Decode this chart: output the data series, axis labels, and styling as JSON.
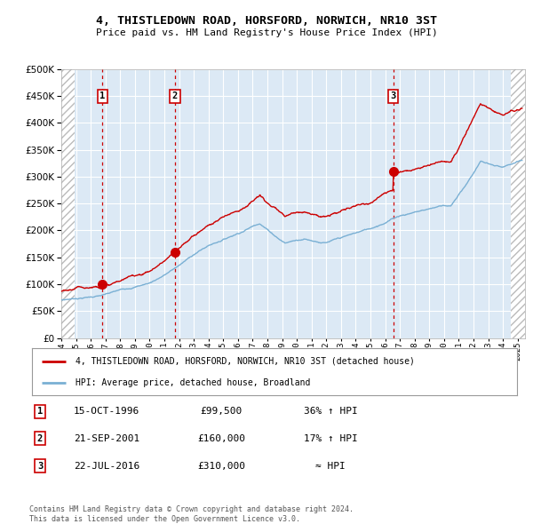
{
  "title": "4, THISTLEDOWN ROAD, HORSFORD, NORWICH, NR10 3ST",
  "subtitle": "Price paid vs. HM Land Registry's House Price Index (HPI)",
  "sale_label": "4, THISTLEDOWN ROAD, HORSFORD, NORWICH, NR10 3ST (detached house)",
  "hpi_label": "HPI: Average price, detached house, Broadland",
  "sales": [
    {
      "num": 1,
      "date_year": 1996.79,
      "price": 99500,
      "label": "15-OCT-1996",
      "note": "36% ↑ HPI"
    },
    {
      "num": 2,
      "date_year": 2001.72,
      "price": 160000,
      "label": "21-SEP-2001",
      "note": "17% ↑ HPI"
    },
    {
      "num": 3,
      "date_year": 2016.55,
      "price": 310000,
      "label": "22-JUL-2016",
      "note": "≈ HPI"
    }
  ],
  "footer": "Contains HM Land Registry data © Crown copyright and database right 2024.\nThis data is licensed under the Open Government Licence v3.0.",
  "ylim": [
    0,
    500000
  ],
  "yticks": [
    0,
    50000,
    100000,
    150000,
    200000,
    250000,
    300000,
    350000,
    400000,
    450000,
    500000
  ],
  "xlim_start": 1994.0,
  "xlim_end": 2025.5,
  "hatch_end": 1994.9,
  "hatch_start": 2024.55,
  "bg_color": "#dce9f5",
  "grid_color": "#ffffff",
  "sale_line_color": "#cc0000",
  "hpi_line_color": "#7ab0d4",
  "vline_color": "#cc0000",
  "dot_color": "#cc0000",
  "box_color": "#cc0000",
  "hatch_color": "#bbbbbb"
}
